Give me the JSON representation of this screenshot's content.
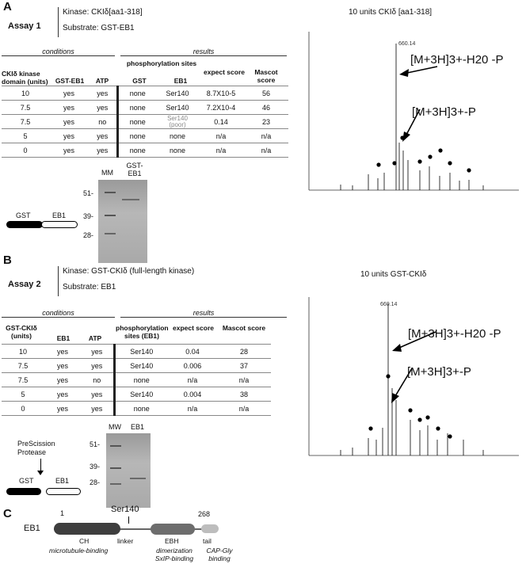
{
  "panelA": {
    "letter": "A",
    "assay_label": "Assay 1",
    "kinase_line": "Kinase: CKIδ[aa1-318]",
    "substrate_line": "Substrate: GST-EB1",
    "conditions_header": "conditions",
    "results_header": "results",
    "col_headers": {
      "kinase_domain": "CKIδ kinase domain (units)",
      "gst_eb1": "GST-EB1",
      "atp": "ATP",
      "phospho": "phosphorylation sites",
      "gst": "GST",
      "eb1": "EB1",
      "expect": "expect score",
      "mascot": "Mascot score"
    },
    "rows": [
      {
        "units": "10",
        "gst_eb1": "yes",
        "atp": "yes",
        "gst": "none",
        "eb1": "Ser140",
        "expect": "8.7X10-5",
        "mascot": "56"
      },
      {
        "units": "7.5",
        "gst_eb1": "yes",
        "atp": "yes",
        "gst": "none",
        "eb1": "Ser140",
        "expect": "7.2X10-4",
        "mascot": "46"
      },
      {
        "units": "7.5",
        "gst_eb1": "yes",
        "atp": "no",
        "gst": "none",
        "eb1": "Ser140 (poor)",
        "expect": "0.14",
        "mascot": "23"
      },
      {
        "units": "5",
        "gst_eb1": "yes",
        "atp": "yes",
        "gst": "none",
        "eb1": "none",
        "expect": "n/a",
        "mascot": "n/a"
      },
      {
        "units": "0",
        "gst_eb1": "yes",
        "atp": "yes",
        "gst": "none",
        "eb1": "none",
        "expect": "n/a",
        "mascot": "n/a"
      }
    ],
    "gel": {
      "mm_label": "MM",
      "lane_label": "GST-EB1",
      "markers": [
        "51-",
        "39-",
        "28-"
      ]
    },
    "construct": {
      "left": "GST",
      "right": "EB1"
    },
    "spectrum": {
      "title": "10 units CKIδ [aa1-318]",
      "ann1": "[M+3H]3+-H20 -P",
      "ann2": "[M+3H]3+-P",
      "peak_label": "660.14"
    }
  },
  "panelB": {
    "letter": "B",
    "assay_label": "Assay 2",
    "kinase_line": "Kinase: GST-CKIδ (full-length kinase)",
    "substrate_line": "Substrate: EB1",
    "conditions_header": "conditions",
    "results_header": "results",
    "col_headers": {
      "kinase": "GST-CKIδ (units)",
      "eb1": "EB1",
      "atp": "ATP",
      "phospho": "phosphorylation sites (EB1)",
      "expect": "expect score",
      "mascot": "Mascot score"
    },
    "rows": [
      {
        "units": "10",
        "eb1": "yes",
        "atp": "yes",
        "sites": "Ser140",
        "expect": "0.04",
        "mascot": "28"
      },
      {
        "units": "7.5",
        "eb1": "yes",
        "atp": "yes",
        "sites": "Ser140",
        "expect": "0.006",
        "mascot": "37"
      },
      {
        "units": "7.5",
        "eb1": "yes",
        "atp": "no",
        "sites": "none",
        "expect": "n/a",
        "mascot": "n/a"
      },
      {
        "units": "5",
        "eb1": "yes",
        "atp": "yes",
        "sites": "Ser140",
        "expect": "0.004",
        "mascot": "38"
      },
      {
        "units": "0",
        "eb1": "yes",
        "atp": "yes",
        "sites": "none",
        "expect": "n/a",
        "mascot": "n/a"
      }
    ],
    "gel": {
      "mw_label": "MW",
      "lane_label": "EB1",
      "markers": [
        "51-",
        "39-",
        "28-"
      ]
    },
    "construct": {
      "protease": "PreScission Protease",
      "left": "GST",
      "right": "EB1"
    },
    "spectrum": {
      "title": "10 units GST-CKIδ",
      "ann1": "[M+3H]3+-H20 -P",
      "ann2": "[M+3H]3+-P",
      "peak_label": "660.14"
    }
  },
  "panelC": {
    "letter": "C",
    "protein": "EB1",
    "start": "1",
    "end": "268",
    "site": "Ser140",
    "domains": {
      "ch": "CH",
      "linker": "linker",
      "ebh": "EBH",
      "tail": "tail"
    },
    "notes": {
      "ch": "microtubule-binding",
      "ebh": "dimerization SxIP-binding",
      "tail": "CAP-Gly binding"
    }
  }
}
